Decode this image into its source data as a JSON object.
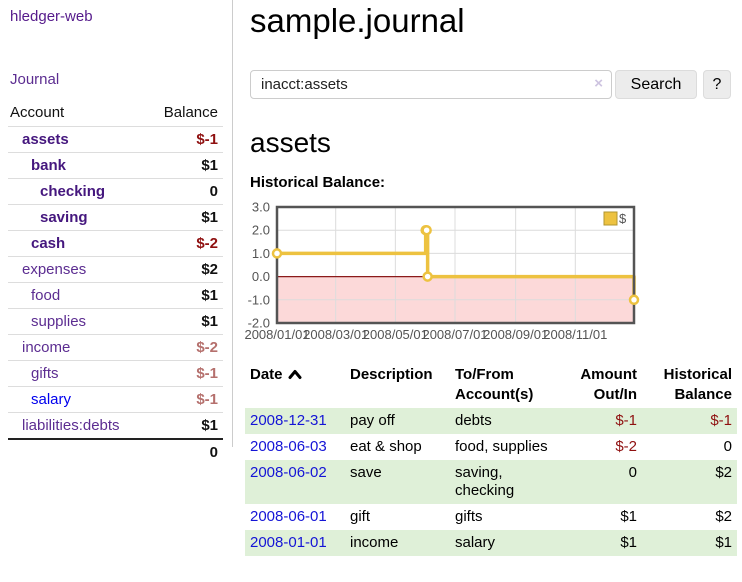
{
  "sidebar": {
    "app_title": "hledger-web",
    "journal_label": "Journal",
    "accounts_table": {
      "headers": {
        "account": "Account",
        "balance": "Balance"
      },
      "rows": [
        {
          "name": "assets",
          "balance": "$-1"
        },
        {
          "name": "bank",
          "balance": "$1"
        },
        {
          "name": "checking",
          "balance": "0"
        },
        {
          "name": "saving",
          "balance": "$1"
        },
        {
          "name": "cash",
          "balance": "$-2"
        },
        {
          "name": "expenses",
          "balance": "$2"
        },
        {
          "name": "food",
          "balance": "$1"
        },
        {
          "name": "supplies",
          "balance": "$1"
        },
        {
          "name": "income",
          "balance": "$-2"
        },
        {
          "name": "gifts",
          "balance": "$-1"
        },
        {
          "name": "salary",
          "balance": "$-1"
        },
        {
          "name": "liabilities:debts",
          "balance": "$1"
        }
      ],
      "total": "0"
    }
  },
  "main": {
    "title": "sample.journal",
    "search": {
      "value": "inacct:assets",
      "clear_label": "×",
      "button_label": "Search",
      "help_label": "?"
    },
    "account_heading": "assets",
    "chart_label": "Historical Balance:",
    "register": {
      "headers": {
        "date": "Date",
        "description": "Description",
        "accounts": "To/From Account(s)",
        "amount": "Amount Out/In",
        "balance": "Historical Balance"
      },
      "rows": [
        {
          "date": "2008-12-31",
          "description": "pay off",
          "accounts": "debts",
          "amount": "$-1",
          "balance": "$-1"
        },
        {
          "date": "2008-06-03",
          "description": "eat & shop",
          "accounts": "food, supplies",
          "amount": "$-2",
          "balance": "0"
        },
        {
          "date": "2008-06-02",
          "description": "save",
          "accounts": "saving,\nchecking",
          "amount": "0",
          "balance": "$2"
        },
        {
          "date": "2008-06-01",
          "description": "gift",
          "accounts": "gifts",
          "amount": "$1",
          "balance": "$2"
        },
        {
          "date": "2008-01-01",
          "description": "income",
          "accounts": "salary",
          "amount": "$1",
          "balance": "$1"
        }
      ]
    }
  },
  "chart_data": {
    "type": "line",
    "step": true,
    "title": "Historical Balance",
    "series": [
      {
        "name": "$",
        "points": [
          [
            "2008-01-01",
            1
          ],
          [
            "2008-06-01",
            2
          ],
          [
            "2008-06-02",
            2
          ],
          [
            "2008-06-03",
            0
          ],
          [
            "2008-12-31",
            -1
          ]
        ]
      }
    ],
    "xlim": [
      "2008-01-01",
      "2008-12-31"
    ],
    "ylim": [
      -2,
      3
    ],
    "yticks": [
      3,
      2,
      1,
      0,
      -1,
      -2
    ],
    "xticks": [
      {
        "label": "2008/01/01",
        "date": "2008-01-01"
      },
      {
        "label": "2008/03/01",
        "date": "2008-03-01"
      },
      {
        "label": "2008/05/01",
        "date": "2008-05-01"
      },
      {
        "label": "2008/07/01",
        "date": "2008-07-01"
      },
      {
        "label": "2008/09/01",
        "date": "2008-09-01"
      },
      {
        "label": "2008/11/01",
        "date": "2008-11-01"
      }
    ],
    "legend_position": "top-right",
    "grid": true,
    "colors": {
      "series": "#EDC240",
      "marker_fill": "#ffffff",
      "negative_fill": "#fcd9d9",
      "zero_line": "#8b1a1a",
      "grid_line": "#dcdcdc",
      "border": "#545454",
      "tick_text": "#545454"
    }
  },
  "colors": {
    "link_purple": "#5c2d91",
    "link_purple_bold": "#45177e",
    "link_blue": "#0000ee",
    "negative_strong": "#8f1010",
    "negative_soft": "#b5706d",
    "row_stripe_green": "#dff0d8"
  }
}
